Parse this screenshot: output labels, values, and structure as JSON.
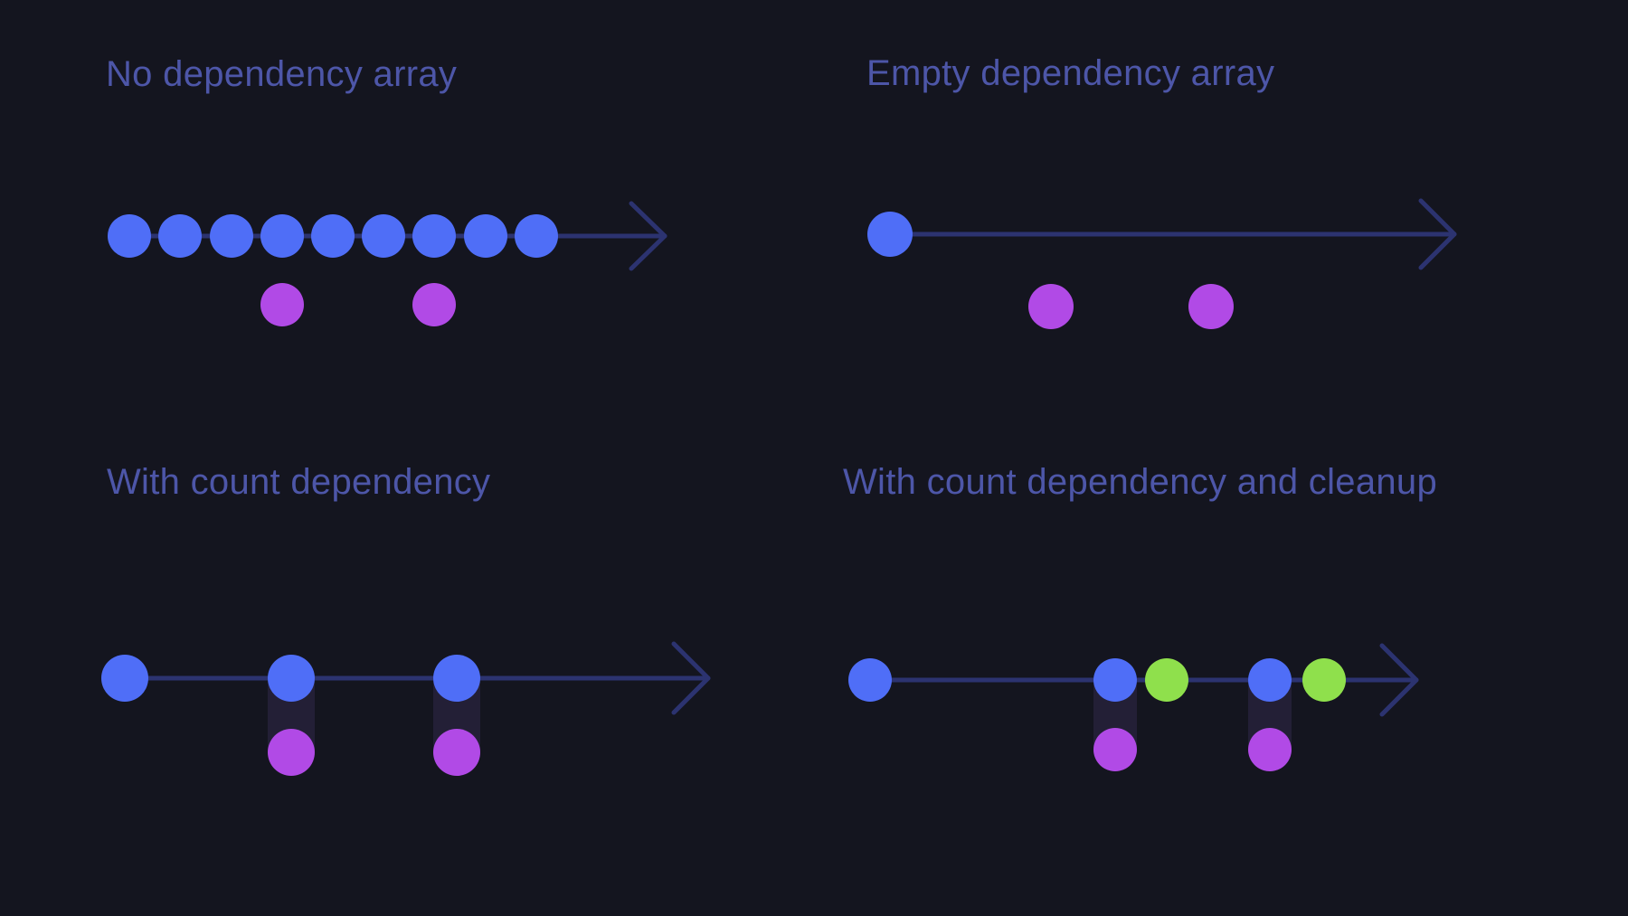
{
  "titles": {
    "no_dependency_array": "No dependency array",
    "empty_dependency_array": "Empty dependency array",
    "with_count_dependency": "With count dependency",
    "with_count_dependency_and_cleanup": "With count dependency and cleanup"
  },
  "colors": {
    "background": "#14151f",
    "title_text": "#4d56a8",
    "timeline": "#2c3370",
    "render_dot": "#4f6ef7",
    "effect_dot": "#b14ae6",
    "cleanup_dot": "#8fe04c",
    "connector": "#231f36"
  }
}
